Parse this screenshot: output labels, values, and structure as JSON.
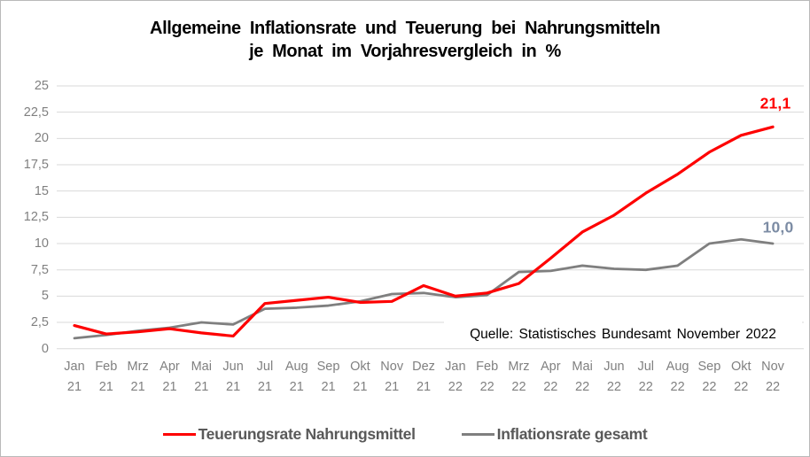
{
  "title": {
    "line1": "Allgemeine Inflationsrate und Teuerung bei Nahrungsmitteln",
    "line2": "je Monat im Vorjahresvergleich in %"
  },
  "source_note": "Quelle: Statistisches Bundesamt November 2022",
  "chart_data": {
    "type": "line",
    "x_months": [
      "Jan",
      "Feb",
      "Mrz",
      "Apr",
      "Mai",
      "Jun",
      "Jul",
      "Aug",
      "Sep",
      "Okt",
      "Nov",
      "Dez",
      "Jan",
      "Feb",
      "Mrz",
      "Apr",
      "Mai",
      "Jun",
      "Jul",
      "Aug",
      "Sep",
      "Okt",
      "Nov"
    ],
    "x_years": [
      "21",
      "21",
      "21",
      "21",
      "21",
      "21",
      "21",
      "21",
      "21",
      "21",
      "21",
      "21",
      "22",
      "22",
      "22",
      "22",
      "22",
      "22",
      "22",
      "22",
      "22",
      "22",
      "22"
    ],
    "series": [
      {
        "name": "Teuerungsrate Nahrungsmittel",
        "color": "#fe0000",
        "stroke_width": 3.2,
        "end_label": "21,1",
        "values": [
          2.2,
          1.4,
          1.6,
          1.9,
          1.5,
          1.2,
          4.3,
          4.6,
          4.9,
          4.4,
          4.5,
          6.0,
          5.0,
          5.3,
          6.2,
          8.6,
          11.1,
          12.7,
          14.8,
          16.6,
          18.7,
          20.3,
          21.1
        ]
      },
      {
        "name": "Inflationsrate gesamt",
        "color": "#7f7f7f",
        "stroke_width": 2.8,
        "end_label": "10,0",
        "values": [
          1.0,
          1.3,
          1.7,
          2.0,
          2.5,
          2.3,
          3.8,
          3.9,
          4.1,
          4.5,
          5.2,
          5.3,
          4.9,
          5.1,
          7.3,
          7.4,
          7.9,
          7.6,
          7.5,
          7.9,
          10.0,
          10.4,
          10.0
        ]
      }
    ],
    "ylim": [
      0,
      25
    ],
    "ytick_step": 2.5,
    "ytick_labels": [
      "0",
      "2,5",
      "5",
      "7,5",
      "10",
      "12,5",
      "15",
      "17,5",
      "20",
      "22,5",
      "25"
    ],
    "grid": "horizontal",
    "gridline_color": "#d9d9d9",
    "legend_position": "bottom"
  },
  "legend": {
    "items": [
      {
        "label": "Teuerungsrate Nahrungsmittel",
        "color": "#fe0000"
      },
      {
        "label": "Inflationsrate gesamt",
        "color": "#7f7f7f"
      }
    ]
  }
}
